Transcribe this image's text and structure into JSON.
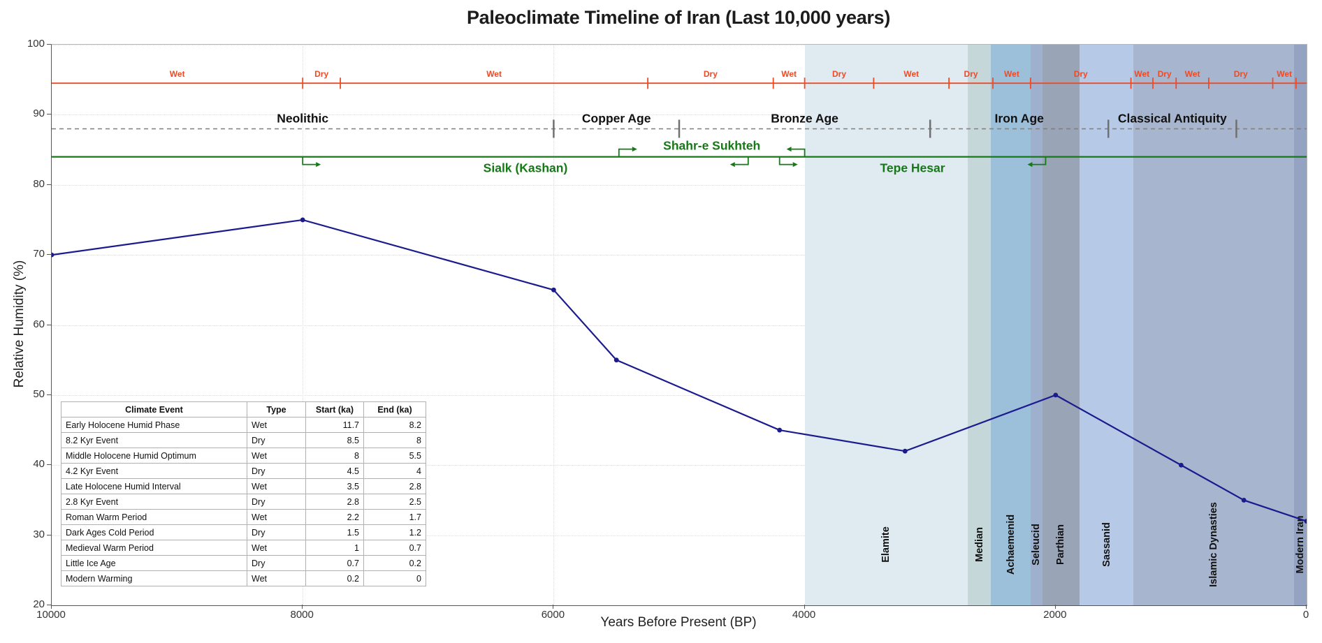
{
  "title": "Paleoclimate Timeline of Iran (Last 10,000 years)",
  "axes": {
    "x": {
      "label": "Years Before Present (BP)",
      "tick_values": [
        10000,
        8000,
        6000,
        4000,
        2000,
        0
      ],
      "min": 0,
      "max": 10000,
      "reversed": true
    },
    "y": {
      "label": "Relative Humidity (%)",
      "tick_values": [
        20,
        30,
        40,
        50,
        60,
        70,
        80,
        90,
        100
      ],
      "min": 20,
      "max": 100
    }
  },
  "chart_data": {
    "type": "line",
    "title": "Paleoclimate Timeline of Iran (Last 10,000 years)",
    "xlabel": "Years Before Present (BP)",
    "ylabel": "Relative Humidity (%)",
    "xlim": [
      10000,
      0
    ],
    "ylim": [
      20,
      100
    ],
    "grid": true,
    "humidity_series": {
      "name": "Relative Humidity",
      "color": "#1b1b8e",
      "points": [
        [
          10000,
          70
        ],
        [
          8000,
          75
        ],
        [
          6000,
          65
        ],
        [
          5500,
          55
        ],
        [
          4200,
          45
        ],
        [
          3200,
          42
        ],
        [
          2000,
          50
        ],
        [
          1000,
          40
        ],
        [
          500,
          35
        ],
        [
          0,
          32
        ]
      ]
    },
    "climate_strip": {
      "axis_value": 94.5,
      "color": "#f04a24",
      "segments": [
        {
          "type": "Wet",
          "start_bp": 10000,
          "end_bp": 8000
        },
        {
          "type": "Dry",
          "start_bp": 8000,
          "end_bp": 7700
        },
        {
          "type": "Wet",
          "start_bp": 7700,
          "end_bp": 5250
        },
        {
          "type": "Dry",
          "start_bp": 5250,
          "end_bp": 4250
        },
        {
          "type": "Wet",
          "start_bp": 4250,
          "end_bp": 4000
        },
        {
          "type": "Dry",
          "start_bp": 4000,
          "end_bp": 3450
        },
        {
          "type": "Wet",
          "start_bp": 3450,
          "end_bp": 2850
        },
        {
          "type": "Dry",
          "start_bp": 2850,
          "end_bp": 2500
        },
        {
          "type": "Wet",
          "start_bp": 2500,
          "end_bp": 2200
        },
        {
          "type": "Dry",
          "start_bp": 2200,
          "end_bp": 1400
        },
        {
          "type": "Wet",
          "start_bp": 1400,
          "end_bp": 1225
        },
        {
          "type": "Dry",
          "start_bp": 1225,
          "end_bp": 1040
        },
        {
          "type": "Wet",
          "start_bp": 1040,
          "end_bp": 780
        },
        {
          "type": "Dry",
          "start_bp": 780,
          "end_bp": 270
        },
        {
          "type": "Wet",
          "start_bp": 270,
          "end_bp": 85
        }
      ]
    },
    "age_line": {
      "axis_value": 88,
      "color": "#7f7f7f",
      "periods": [
        {
          "name": "Neolithic",
          "start_bp": 10000,
          "end_bp": 6000
        },
        {
          "name": "Copper Age",
          "start_bp": 6000,
          "end_bp": 5000
        },
        {
          "name": "Bronze Age",
          "start_bp": 5000,
          "end_bp": 3000
        },
        {
          "name": "Iron Age",
          "start_bp": 3000,
          "end_bp": 1580
        },
        {
          "name": "Classical Antiquity",
          "start_bp": 1580,
          "end_bp": 560
        }
      ]
    },
    "sites_line": {
      "axis_value": 84,
      "color": "#157a15",
      "sites": [
        {
          "name": "Sialk (Kashan)",
          "start_bp": 8000,
          "end_bp": 4450,
          "label_side": "below"
        },
        {
          "name": "Shahr-e Sukhteh",
          "start_bp": 5480,
          "end_bp": 4000,
          "label_side": "above"
        },
        {
          "name": "Tepe Hesar",
          "start_bp": 4200,
          "end_bp": 2080,
          "label_side": "below"
        }
      ]
    },
    "dynasty_bands": [
      {
        "name": "Elamite",
        "start_bp": 4000,
        "end_bp": 2700,
        "color": "#e0eaf1"
      },
      {
        "name": "Median",
        "start_bp": 2700,
        "end_bp": 2515,
        "color": "#c6d7da"
      },
      {
        "name": "Achaemenid",
        "start_bp": 2515,
        "end_bp": 2200,
        "color": "#9cbfda"
      },
      {
        "name": "Seleucid",
        "start_bp": 2200,
        "end_bp": 2105,
        "color": "#9fb0cf"
      },
      {
        "name": "Parthian",
        "start_bp": 2105,
        "end_bp": 1810,
        "color": "#99a4b6"
      },
      {
        "name": "Sassanid",
        "start_bp": 1810,
        "end_bp": 1380,
        "color": "#b6c9e6"
      },
      {
        "name": "Islamic Dynasties",
        "start_bp": 1380,
        "end_bp": 100,
        "color": "#a8b5cf"
      },
      {
        "name": "Modern Iran",
        "start_bp": 100,
        "end_bp": 0,
        "color": "#94a3c1"
      }
    ]
  },
  "table": {
    "headers": [
      "Climate Event",
      "Type",
      "Start (ka)",
      "End (ka)"
    ],
    "rows": [
      [
        "Early Holocene Humid Phase",
        "Wet",
        "11.7",
        "8.2"
      ],
      [
        "8.2 Kyr Event",
        "Dry",
        "8.5",
        "8"
      ],
      [
        "Middle Holocene Humid Optimum",
        "Wet",
        "8",
        "5.5"
      ],
      [
        "4.2 Kyr Event",
        "Dry",
        "4.5",
        "4"
      ],
      [
        "Late Holocene Humid Interval",
        "Wet",
        "3.5",
        "2.8"
      ],
      [
        "2.8 Kyr Event",
        "Dry",
        "2.8",
        "2.5"
      ],
      [
        "Roman Warm Period",
        "Wet",
        "2.2",
        "1.7"
      ],
      [
        "Dark Ages Cold Period",
        "Dry",
        "1.5",
        "1.2"
      ],
      [
        "Medieval Warm Period",
        "Wet",
        "1",
        "0.7"
      ],
      [
        "Little Ice Age",
        "Dry",
        "0.7",
        "0.2"
      ],
      [
        "Modern Warming",
        "Wet",
        "0.2",
        "0"
      ]
    ]
  }
}
